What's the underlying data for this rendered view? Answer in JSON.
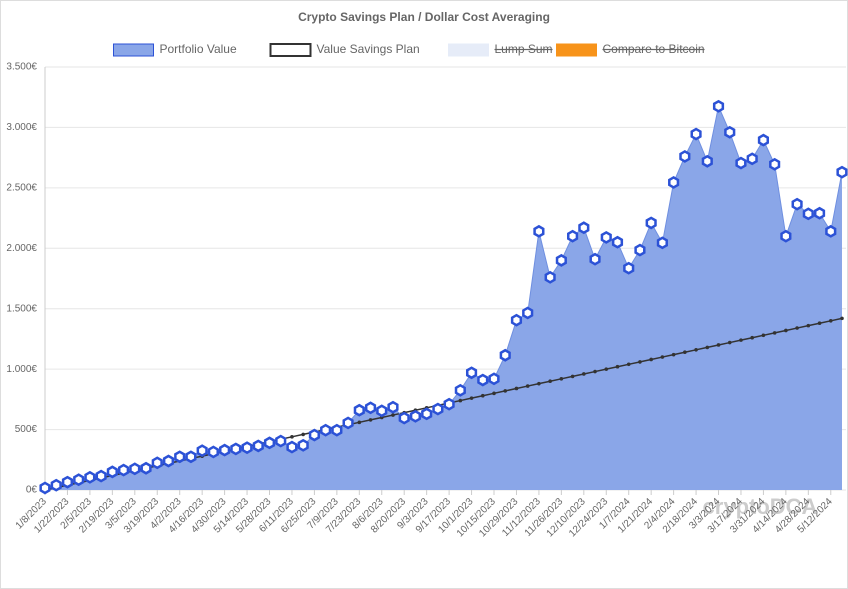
{
  "chart_data": {
    "type": "area",
    "title": "Crypto Savings Plan / Dollar Cost Averaging",
    "watermark": "cryptoDCA",
    "categories": [
      "1/8/2023",
      null,
      "1/22/2023",
      null,
      "2/5/2023",
      null,
      "2/19/2023",
      null,
      "3/5/2023",
      null,
      "3/19/2023",
      null,
      "4/2/2023",
      null,
      "4/16/2023",
      null,
      "4/30/2023",
      null,
      "5/14/2023",
      null,
      "5/28/2023",
      null,
      "6/11/2023",
      null,
      "6/25/2023",
      null,
      "7/9/2023",
      null,
      "7/23/2023",
      null,
      "8/6/2023",
      null,
      "8/20/2023",
      null,
      "9/3/2023",
      null,
      "9/17/2023",
      null,
      "10/1/2023",
      null,
      "10/15/2023",
      null,
      "10/29/2023",
      null,
      "11/12/2023",
      null,
      "11/26/2023",
      null,
      "12/10/2023",
      null,
      "12/24/2023",
      null,
      "1/7/2024",
      null,
      "1/21/2024",
      null,
      "2/4/2024",
      null,
      "2/18/2024",
      null,
      "3/3/2024",
      null,
      "3/17/2024",
      null,
      "3/31/2024",
      null,
      "4/14/2024",
      null,
      "4/28/2024",
      null,
      "5/12/2024",
      null
    ],
    "series": [
      {
        "name": "Portfolio Value",
        "color": "#8aa6e8",
        "values": [
          17,
          40,
          65,
          85,
          105,
          115,
          150,
          165,
          175,
          180,
          225,
          240,
          275,
          275,
          325,
          315,
          330,
          340,
          350,
          365,
          390,
          405,
          355,
          370,
          455,
          495,
          495,
          555,
          660,
          680,
          655,
          685,
          595,
          610,
          630,
          670,
          710,
          825,
          970,
          910,
          920,
          1115,
          1405,
          1465,
          2140,
          1760,
          1900,
          2100,
          2170,
          1910,
          2090,
          2050,
          1835,
          1985,
          2210,
          2045,
          2545,
          2760,
          2945,
          2720,
          3175,
          2960,
          2705,
          2740,
          2895,
          2695,
          2100,
          2365,
          2285,
          2290,
          2140,
          2630
        ]
      },
      {
        "name": "Value Savings Plan",
        "color": "#333333",
        "values": [
          0,
          20,
          40,
          60,
          80,
          100,
          120,
          140,
          160,
          180,
          200,
          220,
          240,
          260,
          280,
          300,
          320,
          340,
          360,
          380,
          400,
          420,
          440,
          460,
          480,
          500,
          520,
          540,
          560,
          580,
          600,
          620,
          640,
          660,
          680,
          700,
          720,
          740,
          760,
          780,
          800,
          820,
          840,
          860,
          880,
          900,
          920,
          940,
          960,
          980,
          1000,
          1020,
          1040,
          1060,
          1080,
          1100,
          1120,
          1140,
          1160,
          1180,
          1200,
          1220,
          1240,
          1260,
          1280,
          1300,
          1320,
          1340,
          1360,
          1380,
          1400,
          1420
        ]
      },
      {
        "name": "Lump Sum",
        "color": "#e6ecf8",
        "hidden": true
      },
      {
        "name": "Compare to Bitcoin",
        "color": "#f7931a",
        "hidden": true
      }
    ],
    "ylim": [
      0,
      3500
    ],
    "yticks": [
      {
        "value": 0,
        "label": "0€"
      },
      {
        "value": 500,
        "label": "500€"
      },
      {
        "value": 1000,
        "label": "1.000€"
      },
      {
        "value": 1500,
        "label": "1.500€"
      },
      {
        "value": 2000,
        "label": "2.000€"
      },
      {
        "value": 2500,
        "label": "2.500€"
      },
      {
        "value": 3000,
        "label": "3.000€"
      },
      {
        "value": 3500,
        "label": "3.500€"
      }
    ],
    "grid": true
  }
}
